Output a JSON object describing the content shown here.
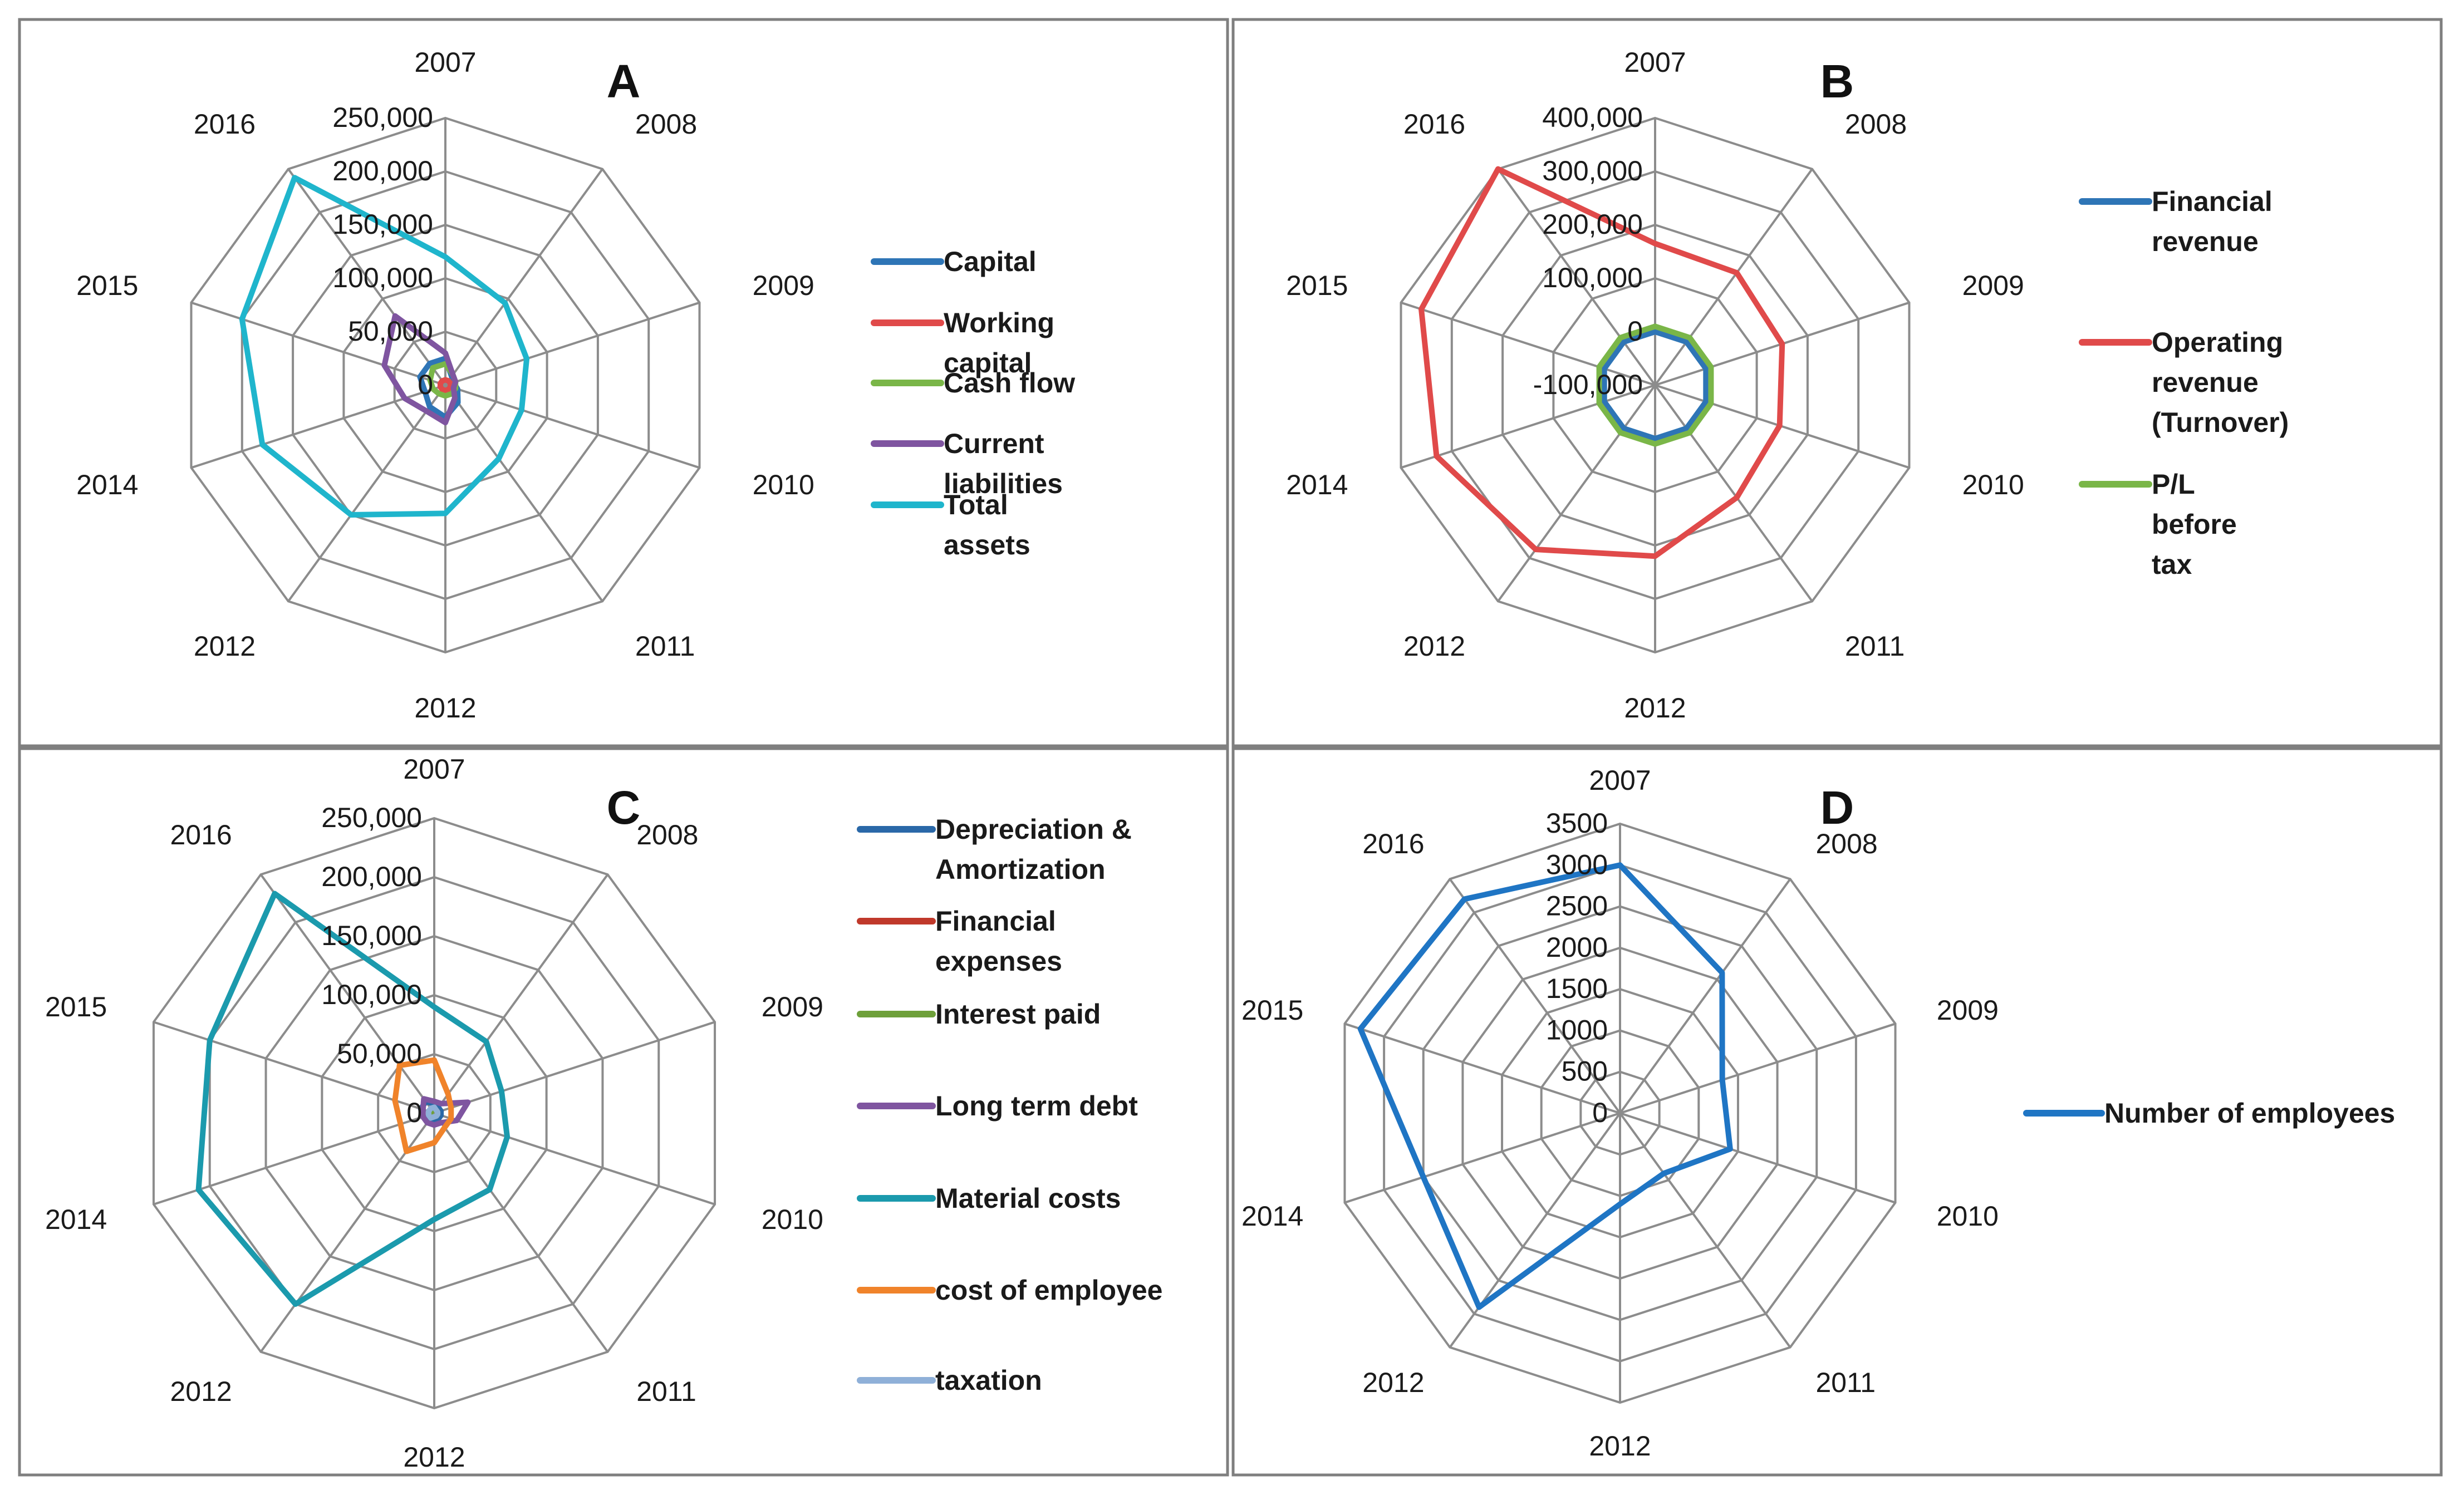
{
  "figure_title": "",
  "colors": {
    "grid": "#8c8c8c",
    "frame": "#7f7f7f",
    "blue": "#2e75b6",
    "red": "#e04a4a",
    "green": "#7ab648",
    "purple": "#7f55a0",
    "cyan": "#1fb5cc",
    "teal": "#1b9aad",
    "orange": "#f0832a",
    "lightblue": "#8fb0d8",
    "darkblue": "#2a68a8",
    "darkred": "#c0392b",
    "olive": "#6ea03a",
    "employees": "#1f75c4"
  },
  "chart_data": [
    {
      "type": "radar",
      "panel_letter": "A",
      "title": "",
      "categories": [
        "2007",
        "2008",
        "2009",
        "2010",
        "2011",
        "2012",
        "2012",
        "2014",
        "2015",
        "2016"
      ],
      "ylim": [
        0,
        250000
      ],
      "tick_values": [
        0,
        50000,
        100000,
        150000,
        200000,
        250000
      ],
      "tick_labels": [
        "0",
        "50,000",
        "100,000",
        "150,000",
        "200,000",
        "250,000"
      ],
      "grid": true,
      "legend_position": "right",
      "series": [
        {
          "name": "Capital",
          "color": "#2e75b6",
          "values": [
            25000,
            10000,
            8000,
            12000,
            20000,
            30000,
            25000,
            20000,
            25000,
            25000
          ]
        },
        {
          "name": "Working capital",
          "color": "#e04a4a",
          "values": [
            5000,
            5000,
            5000,
            5000,
            5000,
            5000,
            5000,
            5000,
            5000,
            5000
          ]
        },
        {
          "name": "Cash flow",
          "color": "#7ab648",
          "values": [
            20000,
            12000,
            10000,
            10000,
            10000,
            10000,
            10000,
            12000,
            15000,
            20000
          ]
        },
        {
          "name": "Current liabilities",
          "color": "#7f55a0",
          "values": [
            30000,
            12000,
            10000,
            8000,
            15000,
            35000,
            30000,
            40000,
            60000,
            80000
          ]
        },
        {
          "name": "Total assets",
          "color": "#1fb5cc",
          "values": [
            120000,
            95000,
            80000,
            75000,
            85000,
            120000,
            150000,
            180000,
            200000,
            240000
          ]
        }
      ]
    },
    {
      "type": "radar",
      "panel_letter": "B",
      "title": "",
      "categories": [
        "2007",
        "2008",
        "2009",
        "2010",
        "2011",
        "2012",
        "2012",
        "2014",
        "2015",
        "2016"
      ],
      "ylim": [
        -100000,
        400000
      ],
      "tick_values": [
        -100000,
        0,
        100000,
        200000,
        300000,
        400000
      ],
      "tick_labels": [
        "-100,000",
        "0",
        "100,000",
        "200,000",
        "300,000",
        "400,000"
      ],
      "grid": true,
      "legend_position": "right",
      "series": [
        {
          "name": "Financial revenue",
          "color": "#2e75b6",
          "values": [
            0,
            0,
            0,
            0,
            0,
            0,
            0,
            0,
            0,
            0
          ]
        },
        {
          "name": "Operating revenue (Turnover)",
          "color": "#e04a4a",
          "values": [
            165000,
            160000,
            150000,
            145000,
            160000,
            220000,
            280000,
            330000,
            360000,
            400000
          ]
        },
        {
          "name": "P/L before tax",
          "color": "#7ab648",
          "values": [
            10000,
            10000,
            10000,
            10000,
            10000,
            10000,
            10000,
            10000,
            10000,
            10000
          ]
        }
      ]
    },
    {
      "type": "radar",
      "panel_letter": "C",
      "title": "",
      "categories": [
        "2007",
        "2008",
        "2009",
        "2010",
        "2011",
        "2012",
        "2012",
        "2014",
        "2015",
        "2016"
      ],
      "ylim": [
        0,
        250000
      ],
      "tick_values": [
        0,
        50000,
        100000,
        150000,
        200000,
        250000
      ],
      "tick_labels": [
        "0",
        "50,000",
        "100,000",
        "150,000",
        "200,000",
        "250,000"
      ],
      "grid": true,
      "legend_position": "right",
      "series": [
        {
          "name": "Depreciation & Amortization",
          "color": "#2a68a8",
          "values": [
            8000,
            6000,
            6000,
            6000,
            6000,
            8000,
            8000,
            10000,
            12000,
            12000
          ]
        },
        {
          "name": "Financial expenses",
          "color": "#c0392b",
          "values": [
            3000,
            3000,
            3000,
            3000,
            3000,
            3000,
            3000,
            3000,
            3000,
            3000
          ]
        },
        {
          "name": "Interest paid",
          "color": "#6ea03a",
          "values": [
            3000,
            3000,
            3000,
            3000,
            3000,
            3000,
            3000,
            3000,
            3000,
            3000
          ]
        },
        {
          "name": "Long term debt",
          "color": "#7f55a0",
          "values": [
            10000,
            10000,
            30000,
            20000,
            10000,
            10000,
            10000,
            10000,
            10000,
            15000
          ]
        },
        {
          "name": "Material costs",
          "color": "#1b9aad",
          "values": [
            90000,
            75000,
            60000,
            65000,
            80000,
            90000,
            200000,
            210000,
            200000,
            230000
          ]
        },
        {
          "name": "cost of employee",
          "color": "#f0832a",
          "values": [
            45000,
            20000,
            15000,
            15000,
            15000,
            25000,
            40000,
            30000,
            35000,
            50000
          ]
        },
        {
          "name": "taxation",
          "color": "#8fb0d8",
          "values": [
            5000,
            3000,
            3000,
            3000,
            3000,
            3000,
            5000,
            5000,
            5000,
            5000
          ]
        }
      ]
    },
    {
      "type": "radar",
      "panel_letter": "D",
      "title": "",
      "categories": [
        "2007",
        "2008",
        "2009",
        "2010",
        "2011",
        "2012",
        "2012",
        "2014",
        "2015",
        "2016"
      ],
      "ylim": [
        0,
        3500
      ],
      "tick_values": [
        0,
        500,
        1000,
        1500,
        2000,
        2500,
        3000,
        3500
      ],
      "tick_labels": [
        "0",
        "500",
        "1000",
        "1500",
        "2000",
        "2500",
        "3000",
        "3500"
      ],
      "grid": true,
      "legend_position": "right",
      "series": [
        {
          "name": "Number of employees",
          "color": "#1f75c4",
          "values": [
            3000,
            2100,
            1300,
            1400,
            900,
            1100,
            2900,
            2500,
            3300,
            3200
          ]
        }
      ]
    }
  ]
}
